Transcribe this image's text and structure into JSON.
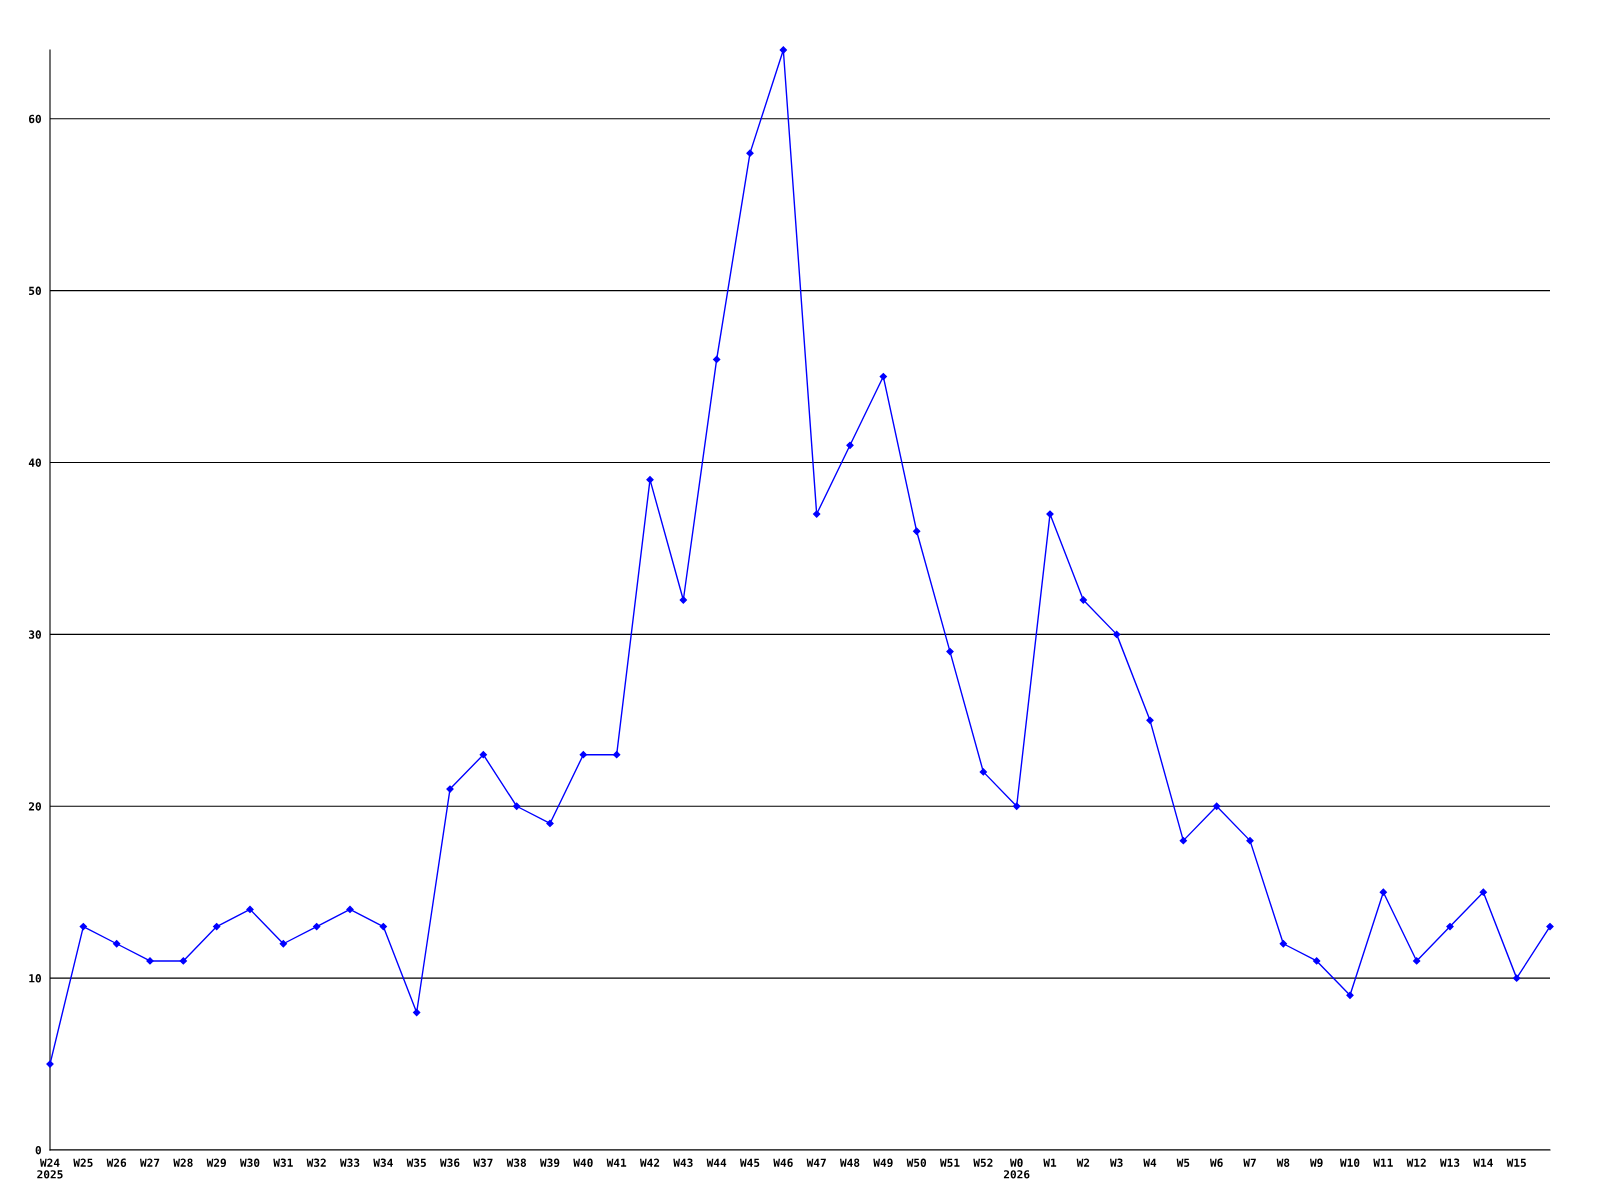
{
  "chart_data": {
    "type": "line",
    "categories": [
      "W24\n2025",
      "W25",
      "W26",
      "W27",
      "W28",
      "W29",
      "W30",
      "W31",
      "W32",
      "W33",
      "W34",
      "W35",
      "W36",
      "W37",
      "W38",
      "W39",
      "W40",
      "W41",
      "W42",
      "W43",
      "W44",
      "W45",
      "W46",
      "W47",
      "W48",
      "W49",
      "W50",
      "W51",
      "W52",
      "W0\n2026",
      "W1",
      "W2",
      "W3",
      "W4",
      "W5",
      "W6",
      "W7",
      "W8",
      "W9",
      "W10",
      "W11",
      "W12",
      "W13",
      "W14",
      "W15",
      null
    ],
    "series": [
      {
        "color": "#0000ff",
        "values": [
          5,
          13,
          12,
          11,
          11,
          13,
          14,
          12,
          13,
          14,
          13,
          8,
          21,
          23,
          20,
          19,
          23,
          23,
          39,
          32,
          46,
          58,
          64,
          37,
          41,
          45,
          36,
          29,
          22,
          20,
          37,
          32,
          30,
          25,
          18,
          20,
          18,
          12,
          11,
          9,
          15,
          11,
          13,
          15,
          10,
          13
        ]
      }
    ],
    "ylim": [
      0,
      64
    ],
    "yticks": [
      0,
      10,
      20,
      30,
      40,
      50,
      60
    ],
    "grid": "y",
    "marker": "diamond",
    "line_style": "solid",
    "legend": false
  }
}
